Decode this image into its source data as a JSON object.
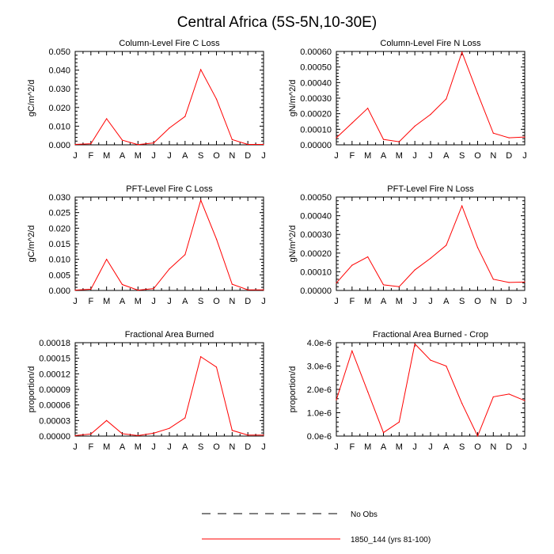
{
  "figure": {
    "title": "Central Africa (5S-5N,10-30E)"
  },
  "legend": {
    "entries": [
      {
        "label": "No Obs",
        "style": "dashed",
        "color": "#000000"
      },
      {
        "label": "1850_144 (yrs 81-100)",
        "style": "solid",
        "color": "#ff0000"
      }
    ]
  },
  "chart_data": [
    {
      "type": "line",
      "title": "Column-Level Fire C Loss",
      "ylabel": "gC/m^2/d",
      "categories": [
        "J",
        "F",
        "M",
        "A",
        "M",
        "J",
        "J",
        "A",
        "S",
        "O",
        "N",
        "D",
        "J"
      ],
      "ylim": [
        0,
        0.05
      ],
      "yticks": [
        "0.000",
        "0.010",
        "0.020",
        "0.030",
        "0.040",
        "0.050"
      ],
      "grid": false,
      "series": [
        {
          "name": "1850_144 (yrs 81-100)",
          "color": "#ff0000",
          "values": [
            0.0002,
            0.0006,
            0.014,
            0.0025,
            0.0001,
            0.001,
            0.009,
            0.0152,
            0.0403,
            0.0245,
            0.0028,
            0.0002,
            0.0002
          ]
        }
      ]
    },
    {
      "type": "line",
      "title": "Column-Level Fire N Loss",
      "ylabel": "gN/m^2/d",
      "categories": [
        "J",
        "F",
        "M",
        "A",
        "M",
        "J",
        "J",
        "A",
        "S",
        "O",
        "N",
        "D",
        "J"
      ],
      "ylim": [
        0,
        0.0006
      ],
      "yticks": [
        "0.00000",
        "0.00010",
        "0.00020",
        "0.00030",
        "0.00040",
        "0.00050",
        "0.00060"
      ],
      "grid": false,
      "series": [
        {
          "name": "1850_144 (yrs 81-100)",
          "color": "#ff0000",
          "values": [
            4.5e-05,
            0.00014,
            0.000235,
            3.5e-05,
            2e-05,
            0.00012,
            0.000195,
            0.000295,
            0.000595,
            0.00033,
            7.5e-05,
            4.5e-05,
            5e-05
          ]
        }
      ]
    },
    {
      "type": "line",
      "title": "PFT-Level Fire C Loss",
      "ylabel": "gC/m^2/d",
      "categories": [
        "J",
        "F",
        "M",
        "A",
        "M",
        "J",
        "J",
        "A",
        "S",
        "O",
        "N",
        "D",
        "J"
      ],
      "ylim": [
        0,
        0.03
      ],
      "yticks": [
        "0.000",
        "0.005",
        "0.010",
        "0.015",
        "0.020",
        "0.025",
        "0.030"
      ],
      "grid": false,
      "series": [
        {
          "name": "1850_144 (yrs 81-100)",
          "color": "#ff0000",
          "values": [
            0.0001,
            0.0004,
            0.01,
            0.0019,
            0.0001,
            0.0006,
            0.0069,
            0.0115,
            0.029,
            0.0165,
            0.002,
            0.0002,
            0.0002
          ]
        }
      ]
    },
    {
      "type": "line",
      "title": "PFT-Level Fire N Loss",
      "ylabel": "gN/m^2/d",
      "categories": [
        "J",
        "F",
        "M",
        "A",
        "M",
        "J",
        "J",
        "A",
        "S",
        "O",
        "N",
        "D",
        "J"
      ],
      "ylim": [
        0,
        0.0005
      ],
      "yticks": [
        "0.00000",
        "0.00010",
        "0.00020",
        "0.00030",
        "0.00040",
        "0.00050"
      ],
      "grid": false,
      "series": [
        {
          "name": "1850_144 (yrs 81-100)",
          "color": "#ff0000",
          "values": [
            4e-05,
            0.000135,
            0.00018,
            3e-05,
            2e-05,
            0.00011,
            0.000172,
            0.000242,
            0.000453,
            0.00023,
            6e-05,
            4.3e-05,
            4.5e-05
          ]
        }
      ]
    },
    {
      "type": "line",
      "title": "Fractional Area Burned",
      "ylabel": "proportion/d",
      "categories": [
        "J",
        "F",
        "M",
        "A",
        "M",
        "J",
        "J",
        "A",
        "S",
        "O",
        "N",
        "D",
        "J"
      ],
      "ylim": [
        0,
        0.00018
      ],
      "yticks": [
        "0.00000",
        "0.00003",
        "0.00006",
        "0.00009",
        "0.00012",
        "0.00015",
        "0.00018"
      ],
      "grid": false,
      "series": [
        {
          "name": "1850_144 (yrs 81-100)",
          "color": "#ff0000",
          "values": [
            1e-06,
            4e-06,
            3e-05,
            4.5e-06,
            1e-06,
            5.5e-06,
            1.5e-05,
            3.5e-05,
            0.000153,
            0.000133,
            1.1e-05,
            2e-06,
            2e-06
          ]
        }
      ]
    },
    {
      "type": "line",
      "title": "Fractional Area Burned - Crop",
      "ylabel": "proportion/d",
      "categories": [
        "J",
        "F",
        "M",
        "A",
        "M",
        "J",
        "J",
        "A",
        "S",
        "O",
        "N",
        "D",
        "J"
      ],
      "ylim": [
        0,
        4e-06
      ],
      "yticks": [
        "0.0e-6",
        "1.0e-6",
        "2.0e-6",
        "3.0e-6",
        "4.0e-6"
      ],
      "grid": false,
      "series": [
        {
          "name": "1850_144 (yrs 81-100)",
          "color": "#ff0000",
          "values": [
            1.55e-06,
            3.65e-06,
            1.9e-06,
            1.5e-07,
            6e-07,
            3.95e-06,
            3.25e-06,
            3e-06,
            1.4e-06,
            0.0,
            1.68e-06,
            1.8e-06,
            1.52e-06
          ]
        }
      ]
    }
  ]
}
